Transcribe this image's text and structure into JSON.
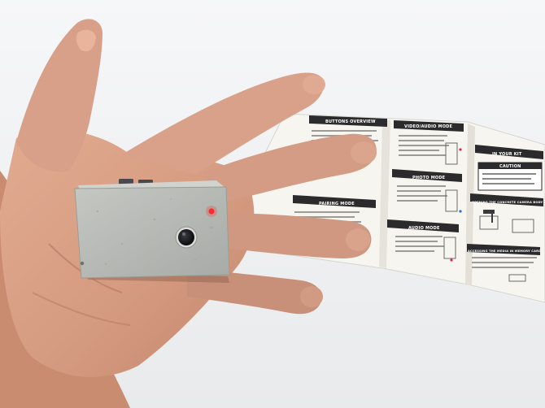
{
  "photo": {
    "subject": "hand-holding-camera-prototype",
    "colors": {
      "background": "#f2f3f5",
      "skin": "#d9a084",
      "skin_shadow": "#b87a63",
      "camera_body": "#b9bcb6",
      "leaflet_paper": "#f7f5ef",
      "leaflet_heading": "#2b2b2d",
      "led": "#ff2a2a"
    }
  },
  "leaflet": {
    "headings": [
      "BUTTONS OVERVIEW",
      "VIDEO/AUDIO MODE",
      "PAIRING MODE",
      "PHOTO MODE",
      "AUDIO MODE",
      "IN YOUR KIT",
      "CAUTION",
      "OPENING THE CONCRETE CAMERA BODY",
      "ACCESSING THE MEDIA IN MEMORY CARD"
    ]
  }
}
